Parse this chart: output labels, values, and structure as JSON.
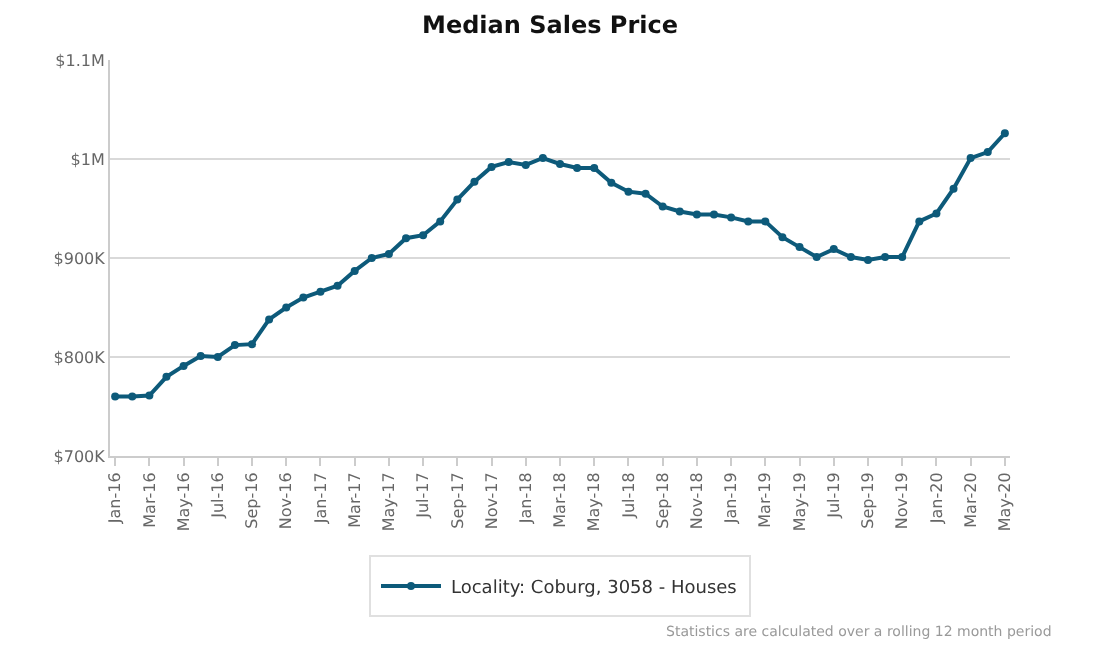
{
  "chart_data": {
    "type": "line",
    "title": "Median Sales Price",
    "categories": [
      "Jan-16",
      null,
      "Mar-16",
      null,
      "May-16",
      null,
      "Jul-16",
      null,
      "Sep-16",
      null,
      "Nov-16",
      null,
      "Jan-17",
      null,
      "Mar-17",
      null,
      "May-17",
      null,
      "Jul-17",
      null,
      "Sep-17",
      null,
      "Nov-17",
      null,
      "Jan-18",
      null,
      "Mar-18",
      null,
      "May-18",
      null,
      "Jul-18",
      null,
      "Sep-18",
      null,
      "Nov-18",
      null,
      "Jan-19",
      null,
      "Mar-19",
      null,
      "May-19",
      null,
      "Jul-19",
      null,
      "Sep-19",
      null,
      "Nov-19",
      null,
      "Jan-20",
      null,
      "Mar-20",
      null,
      "May-20"
    ],
    "series": [
      {
        "name": "Locality: Coburg, 3058 - Houses",
        "color": "#0d5a7a",
        "values": [
          760000,
          760000,
          761000,
          780000,
          791000,
          801000,
          800000,
          812000,
          813000,
          838000,
          850000,
          860000,
          866000,
          872000,
          887000,
          900000,
          904000,
          920000,
          923000,
          937000,
          959000,
          977000,
          992000,
          997000,
          994000,
          1001000,
          995000,
          991000,
          991000,
          976000,
          967000,
          965000,
          952000,
          947000,
          944000,
          944000,
          941000,
          937000,
          937000,
          921000,
          911000,
          901000,
          909000,
          901000,
          898000,
          901000,
          901000,
          937000,
          945000,
          970000,
          1001000,
          1007000,
          1026000
        ]
      }
    ],
    "ylim": [
      700000,
      1100000
    ],
    "yticks": [
      {
        "value": 700000,
        "label": "$700K"
      },
      {
        "value": 800000,
        "label": "$800K"
      },
      {
        "value": 900000,
        "label": "$900K"
      },
      {
        "value": 1000000,
        "label": "$1M"
      },
      {
        "value": 1100000,
        "label": "$1.1M"
      }
    ],
    "grid": "y",
    "legend": "bottom",
    "marker": "circle",
    "line_style": "solid",
    "annotations": [
      "Statistics are calculated over a rolling 12 month period"
    ]
  }
}
